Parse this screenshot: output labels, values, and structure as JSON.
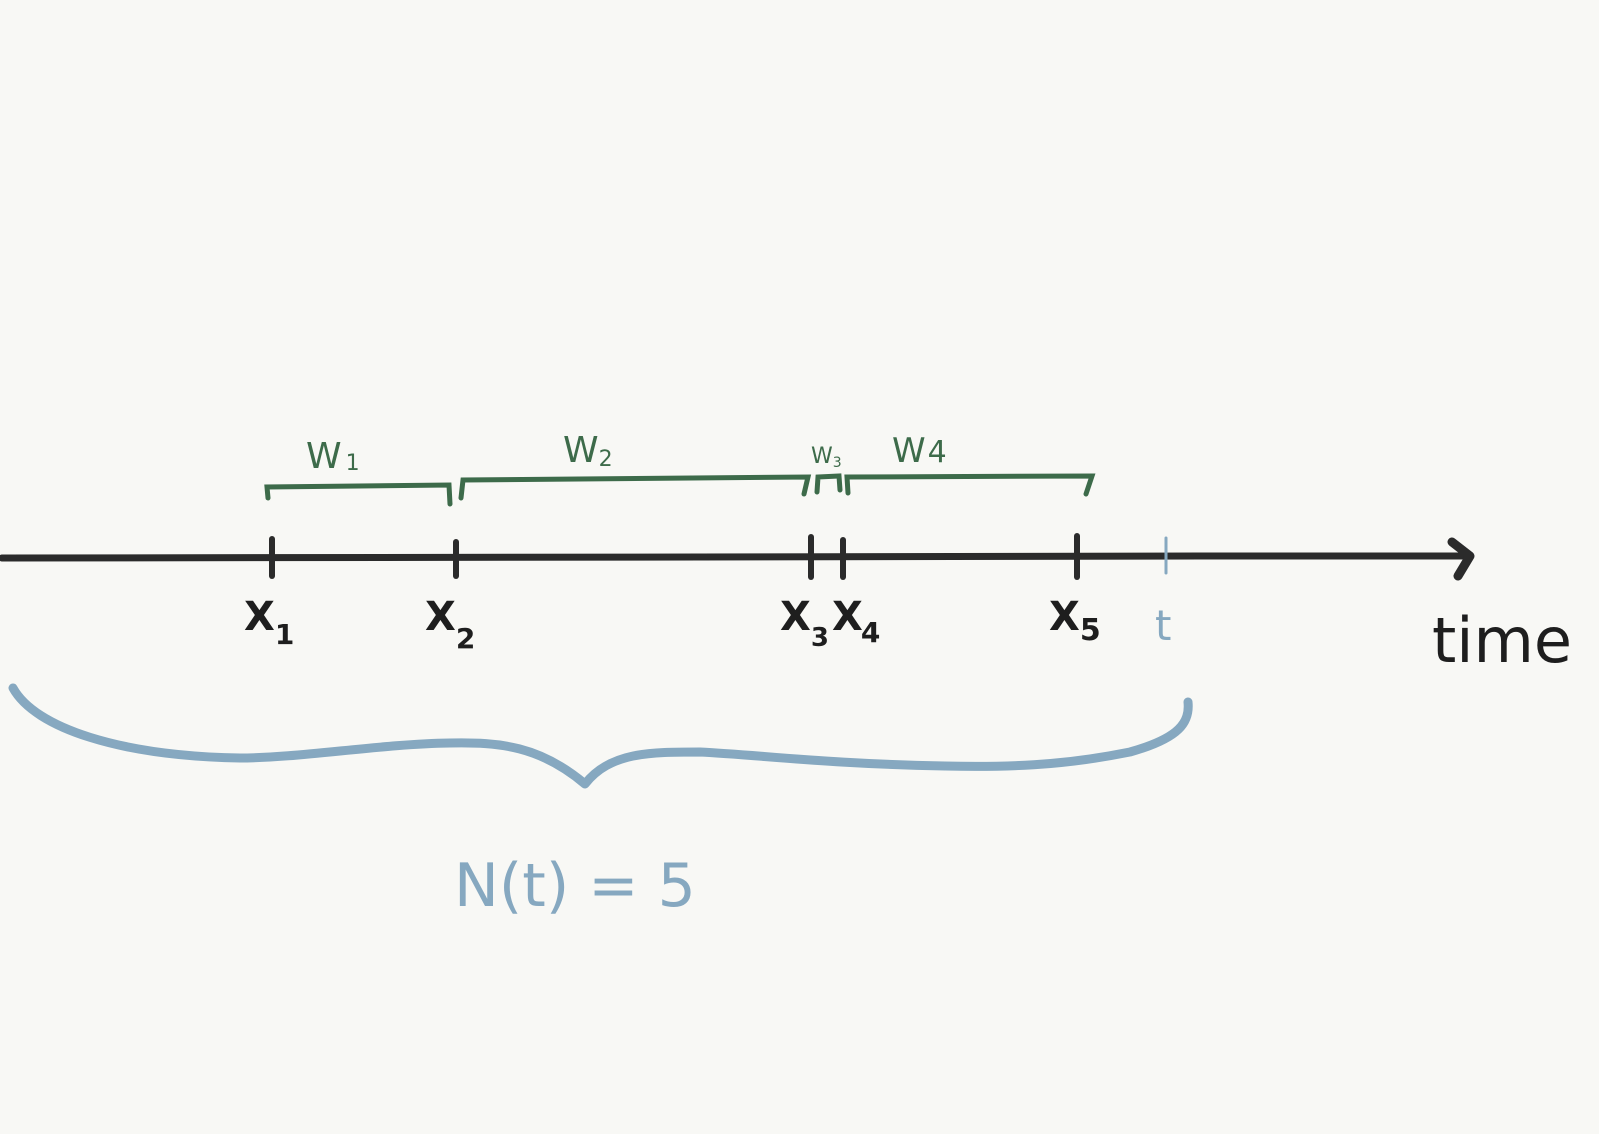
{
  "colors": {
    "background": "#f8f8f5",
    "axis": "#2b2b2b",
    "interval": "#3d6b4a",
    "count": "#86a8c0"
  },
  "diagram": {
    "axis_label": "time",
    "arrivals": [
      {
        "id": "x1",
        "label": "X",
        "subscript": "1"
      },
      {
        "id": "x2",
        "label": "X",
        "subscript": "2"
      },
      {
        "id": "x3",
        "label": "X",
        "subscript": "3"
      },
      {
        "id": "x4",
        "label": "X",
        "subscript": "4"
      },
      {
        "id": "x5",
        "label": "X",
        "subscript": "5"
      }
    ],
    "time_mark": "t",
    "intervals": [
      {
        "id": "w1",
        "label": "W",
        "subscript": "1"
      },
      {
        "id": "w2",
        "label": "W",
        "subscript": "2"
      },
      {
        "id": "w3",
        "label": "W",
        "subscript": "3"
      },
      {
        "id": "w4",
        "label": "W",
        "subscript": "4"
      }
    ],
    "count_label": "N(t) = 5"
  }
}
